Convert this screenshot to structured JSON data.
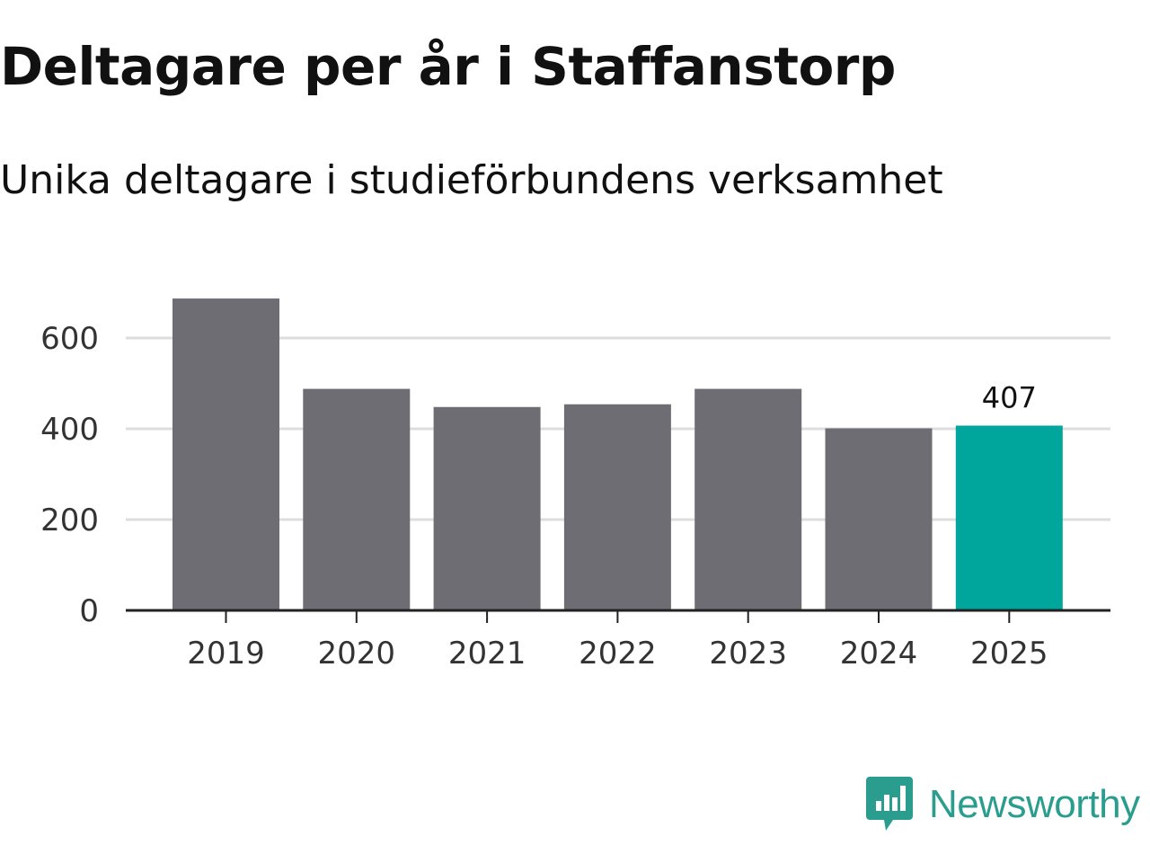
{
  "chart_data": {
    "type": "bar",
    "title": "Deltagare per år i Staffanstorp",
    "subtitle": "Unika deltagare i studieförbundens verksamhet",
    "xlabel": "",
    "ylabel": "",
    "categories": [
      "2019",
      "2020",
      "2021",
      "2022",
      "2023",
      "2024",
      "2025"
    ],
    "values": [
      687,
      488,
      448,
      454,
      488,
      401,
      407
    ],
    "ylim": [
      0,
      700
    ],
    "yticks": [
      0,
      200,
      400,
      600
    ],
    "highlight_index": 6,
    "highlight_label": "407",
    "grid": true,
    "colors": {
      "bar": "#6e6d73",
      "highlight": "#00a59b",
      "grid": "#dddddd",
      "axis": "#222222"
    }
  },
  "brand": {
    "name": "Newsworthy",
    "icon": "newsworthy-logo-icon",
    "color": "#2a9d8f"
  }
}
